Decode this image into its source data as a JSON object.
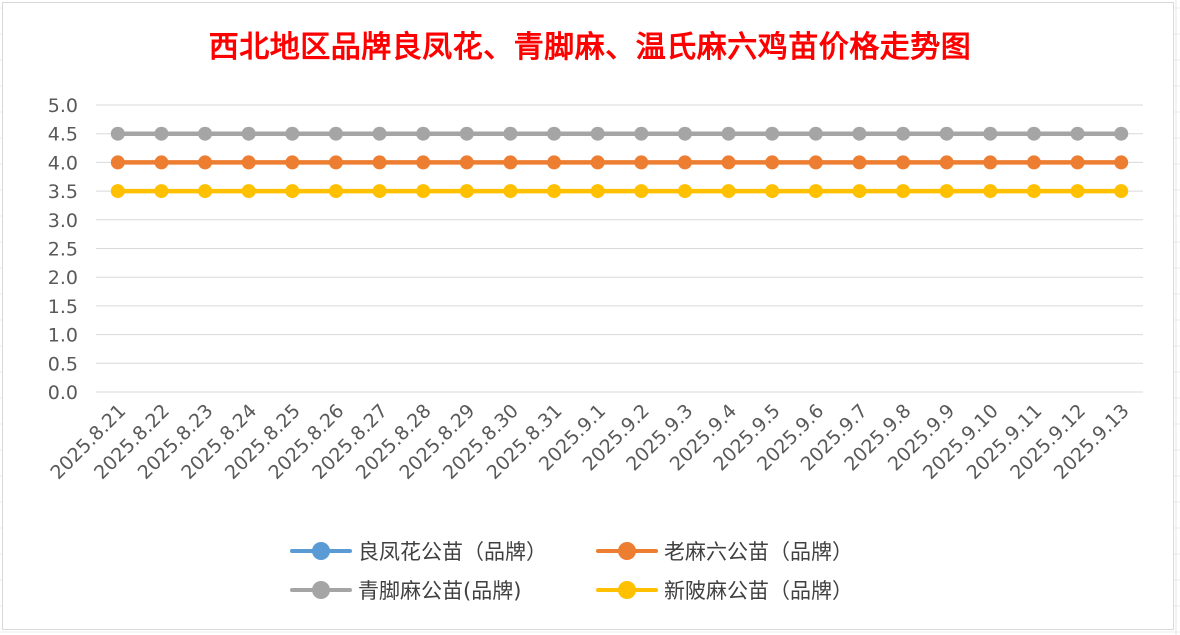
{
  "chart_data": {
    "type": "line",
    "title": "西北地区品牌良凤花、青脚麻、温氏麻六鸡苗价格走势图",
    "xlabel": "",
    "ylabel": "",
    "ylim": [
      0,
      5
    ],
    "y_ticks": [
      "0.0",
      "0.5",
      "1.0",
      "1.5",
      "2.0",
      "2.5",
      "3.0",
      "3.5",
      "4.0",
      "4.5",
      "5.0"
    ],
    "grid": true,
    "legend_position": "bottom",
    "categories": [
      "2025.8.21",
      "2025.8.22",
      "2025.8.23",
      "2025.8.24",
      "2025.8.25",
      "2025.8.26",
      "2025.8.27",
      "2025.8.28",
      "2025.8.29",
      "2025.8.30",
      "2025.8.31",
      "2025.9.1",
      "2025.9.2",
      "2025.9.3",
      "2025.9.4",
      "2025.9.5",
      "2025.9.6",
      "2025.9.7",
      "2025.9.8",
      "2025.9.9",
      "2025.9.10",
      "2025.9.11",
      "2025.9.12",
      "2025.9.13"
    ],
    "series": [
      {
        "name": "良凤花公苗（品牌）",
        "color": "#5b9bd5",
        "values": [
          null,
          null,
          null,
          null,
          null,
          null,
          null,
          null,
          null,
          null,
          null,
          null,
          null,
          null,
          null,
          null,
          null,
          null,
          null,
          null,
          null,
          null,
          null,
          null
        ]
      },
      {
        "name": "老麻六公苗（品牌）",
        "color": "#ed7d31",
        "values": [
          4.0,
          4.0,
          4.0,
          4.0,
          4.0,
          4.0,
          4.0,
          4.0,
          4.0,
          4.0,
          4.0,
          4.0,
          4.0,
          4.0,
          4.0,
          4.0,
          4.0,
          4.0,
          4.0,
          4.0,
          4.0,
          4.0,
          4.0,
          4.0
        ]
      },
      {
        "name": "青脚麻公苗(品牌)",
        "color": "#a5a5a5",
        "values": [
          4.5,
          4.5,
          4.5,
          4.5,
          4.5,
          4.5,
          4.5,
          4.5,
          4.5,
          4.5,
          4.5,
          4.5,
          4.5,
          4.5,
          4.5,
          4.5,
          4.5,
          4.5,
          4.5,
          4.5,
          4.5,
          4.5,
          4.5,
          4.5
        ]
      },
      {
        "name": "新陂麻公苗（品牌）",
        "color": "#ffc000",
        "values": [
          3.5,
          3.5,
          3.5,
          3.5,
          3.5,
          3.5,
          3.5,
          3.5,
          3.5,
          3.5,
          3.5,
          3.5,
          3.5,
          3.5,
          3.5,
          3.5,
          3.5,
          3.5,
          3.5,
          3.5,
          3.5,
          3.5,
          3.5,
          3.5
        ]
      }
    ]
  }
}
